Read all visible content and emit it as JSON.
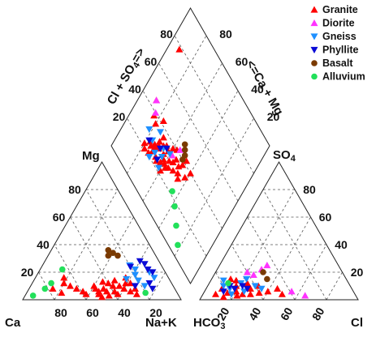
{
  "chart_data": {
    "type": "scatter",
    "diagram": "piper",
    "legend": {
      "placement": "top-right",
      "entries": [
        {
          "name": "Granite",
          "color": "#ff0000",
          "marker": "triangle-up"
        },
        {
          "name": "Diorite",
          "color": "#ff33ff",
          "marker": "triangle-up"
        },
        {
          "name": "Gneiss",
          "color": "#1e90ff",
          "marker": "triangle-down"
        },
        {
          "name": "Phyllite",
          "color": "#0a0ad6",
          "marker": "triangle-down"
        },
        {
          "name": "Basalt",
          "color": "#7a3a00",
          "marker": "circle"
        },
        {
          "name": "Alluvium",
          "color": "#22e05a",
          "marker": "circle"
        }
      ]
    },
    "labels": {
      "ca": "Ca",
      "mg": "Mg",
      "nak": "Na+K",
      "hco3": "HCO",
      "hco3_sub": "3",
      "so4": "SO",
      "so4_sub": "4",
      "cl": "Cl",
      "cl_so4": "Cl + SO",
      "cl_so4_sub": "4",
      "cl_so4_arrow": "=>",
      "ca_mg": "<=Ca + Mg"
    },
    "ticks": {
      "cation_ca": [
        "80",
        "60",
        "40",
        "20"
      ],
      "cation_mg": [
        "80",
        "60",
        "40",
        "20"
      ],
      "anion_cl": [
        "20",
        "40",
        "60",
        "80"
      ],
      "anion_so4": [
        "80",
        "60",
        "40",
        "20"
      ],
      "diamond_left": [
        "80",
        "60",
        "40",
        "20"
      ],
      "diamond_right": [
        "80",
        "60",
        "40",
        "20"
      ]
    },
    "series": [
      {
        "name": "Granite",
        "cation": [
          [
            50,
            6
          ],
          [
            47,
            8
          ],
          [
            55,
            6
          ],
          [
            58,
            4
          ],
          [
            60,
            8
          ],
          [
            52,
            10
          ],
          [
            45,
            6
          ],
          [
            42,
            8
          ],
          [
            65,
            6
          ],
          [
            70,
            4
          ],
          [
            48,
            12
          ],
          [
            53,
            3
          ],
          [
            56,
            10
          ],
          [
            20,
            12
          ],
          [
            18,
            16
          ],
          [
            15,
            8
          ],
          [
            22,
            5
          ],
          [
            62,
            12
          ],
          [
            40,
            10
          ],
          [
            35,
            6
          ],
          [
            30,
            8
          ],
          [
            57,
            16
          ],
          [
            46,
            4
          ],
          [
            51,
            14
          ],
          [
            44,
            13
          ],
          [
            38,
            4
          ],
          [
            25,
            10
          ],
          [
            67,
            8
          ],
          [
            49,
            2
          ],
          [
            59,
            12
          ]
        ],
        "anion": [
          [
            10,
            8
          ],
          [
            15,
            5
          ],
          [
            20,
            6
          ],
          [
            25,
            4
          ],
          [
            18,
            10
          ],
          [
            22,
            3
          ],
          [
            28,
            8
          ],
          [
            35,
            5
          ],
          [
            12,
            15
          ],
          [
            30,
            4
          ],
          [
            40,
            6
          ],
          [
            45,
            8
          ],
          [
            8,
            4
          ],
          [
            16,
            14
          ],
          [
            24,
            12
          ],
          [
            50,
            4
          ],
          [
            14,
            2
          ],
          [
            32,
            10
          ]
        ],
        "diamond": [
          [
            25,
            75
          ],
          [
            30,
            70
          ],
          [
            20,
            78
          ],
          [
            28,
            73
          ],
          [
            33,
            67
          ],
          [
            22,
            80
          ],
          [
            35,
            65
          ],
          [
            27,
            72
          ],
          [
            30,
            64
          ],
          [
            38,
            60
          ],
          [
            24,
            68
          ],
          [
            26,
            77
          ],
          [
            32,
            71
          ],
          [
            21,
            74
          ],
          [
            29,
            69
          ],
          [
            34,
            62
          ],
          [
            23,
            66
          ],
          [
            36,
            70
          ],
          [
            31,
            58
          ],
          [
            28,
            62
          ],
          [
            33,
            55
          ],
          [
            40,
            57
          ],
          [
            27,
            60
          ],
          [
            25,
            63
          ],
          [
            30,
            52
          ],
          [
            35,
            50
          ],
          [
            38,
            48
          ],
          [
            42,
            47
          ],
          [
            28,
            56
          ],
          [
            32,
            48
          ],
          [
            78,
            92
          ],
          [
            45,
            88
          ],
          [
            38,
            84
          ],
          [
            36,
            80
          ],
          [
            42,
            76
          ],
          [
            26,
            58
          ],
          [
            22,
            60
          ],
          [
            35,
            42
          ],
          [
            40,
            40
          ],
          [
            30,
            46
          ],
          [
            36,
            54
          ],
          [
            24,
            72
          ]
        ]
      },
      {
        "name": "Diorite",
        "cation": [],
        "anion": [
          [
            28,
            22
          ],
          [
            30,
            25
          ],
          [
            25,
            18
          ],
          [
            55,
            6
          ],
          [
            65,
            3
          ],
          [
            20,
            20
          ]
        ],
        "diamond": [
          [
            45,
            88
          ],
          [
            40,
            84
          ],
          [
            35,
            58
          ],
          [
            42,
            55
          ]
        ]
      },
      {
        "name": "Gneiss",
        "cation": [
          [
            60,
            22
          ],
          [
            55,
            25
          ],
          [
            62,
            18
          ],
          [
            70,
            20
          ],
          [
            66,
            14
          ],
          [
            58,
            15
          ],
          [
            72,
            10
          ],
          [
            75,
            16
          ]
        ],
        "anion": [
          [
            15,
            8
          ],
          [
            20,
            12
          ],
          [
            10,
            10
          ],
          [
            25,
            6
          ],
          [
            30,
            10
          ],
          [
            22,
            15
          ],
          [
            18,
            4
          ],
          [
            8,
            14
          ],
          [
            35,
            8
          ]
        ],
        "diamond": [
          [
            30,
            82
          ],
          [
            28,
            76
          ],
          [
            25,
            70
          ],
          [
            32,
            66
          ],
          [
            20,
            72
          ],
          [
            36,
            74
          ],
          [
            28,
            64
          ],
          [
            22,
            62
          ],
          [
            34,
            60
          ]
        ]
      },
      {
        "name": "Phyllite",
        "cation": [
          [
            64,
            26
          ],
          [
            68,
            22
          ],
          [
            60,
            28
          ],
          [
            56,
            24
          ],
          [
            72,
            20
          ],
          [
            74,
            12
          ],
          [
            78,
            8
          ],
          [
            66,
            10
          ]
        ],
        "anion": [
          [
            14,
            10
          ],
          [
            18,
            8
          ],
          [
            12,
            6
          ],
          [
            22,
            10
          ],
          [
            26,
            8
          ]
        ],
        "diamond": [
          [
            26,
            78
          ],
          [
            30,
            68
          ],
          [
            24,
            66
          ],
          [
            34,
            64
          ]
        ]
      },
      {
        "name": "Basalt",
        "cation": [
          [
            36,
            36
          ],
          [
            38,
            32
          ],
          [
            40,
            34
          ],
          [
            44,
            32
          ]
        ],
        "anion": [
          [
            30,
            20
          ],
          [
            35,
            15
          ]
        ],
        "diamond": [
          [
            45,
            52
          ],
          [
            43,
            50
          ],
          [
            47,
            54
          ],
          [
            40,
            50
          ]
        ]
      },
      {
        "name": "Alluvium",
        "cation": [
          [
            10,
            8
          ],
          [
            5,
            3
          ],
          [
            12,
            12
          ],
          [
            75,
            5
          ],
          [
            14,
            22
          ]
        ],
        "anion": [
          [
            12,
            12
          ]
        ],
        "diamond": [
          [
            22,
            45
          ],
          [
            18,
            38
          ],
          [
            12,
            30
          ],
          [
            6,
            22
          ]
        ]
      }
    ]
  }
}
